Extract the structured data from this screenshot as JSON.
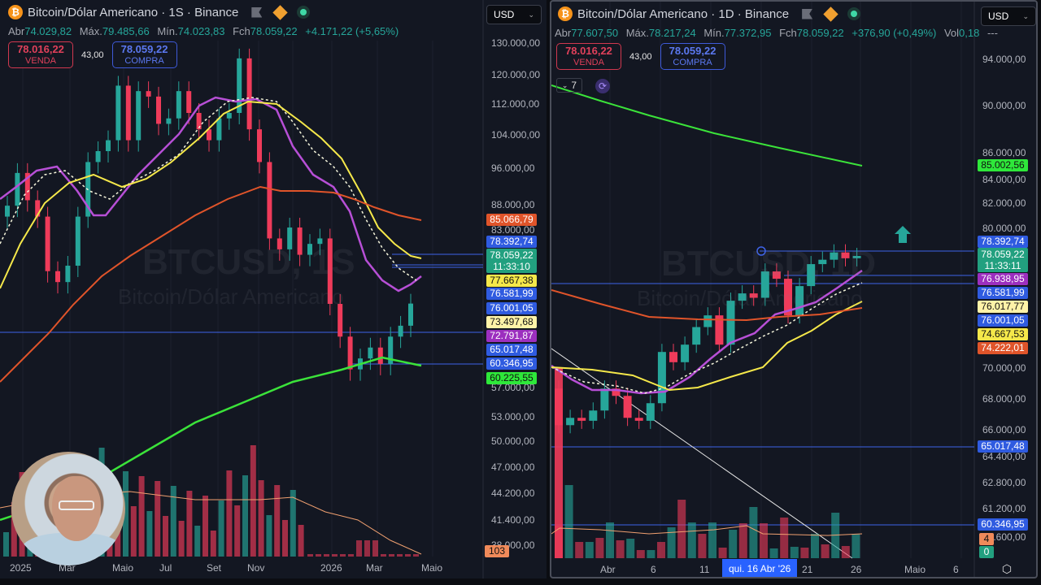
{
  "left": {
    "header": {
      "symbol_title": "Bitcoin/Dólar Americano · 1S · Binance",
      "coin_glyph": "₿"
    },
    "ohlc": {
      "open_label": "Abr",
      "open": "74.029,82",
      "high_label": "Máx.",
      "high": "79.485,66",
      "low_label": "Mín.",
      "low": "74.023,83",
      "close_label": "Fch",
      "close": "78.059,22",
      "change": "+4.171,22 (+5,65%)"
    },
    "trade": {
      "sell_price": "78.016,22",
      "sell_label": "VENDA",
      "spread": "43,00",
      "buy_price": "78.059,22",
      "buy_label": "COMPRA"
    },
    "currency": "USD",
    "watermark": {
      "ticker": "BTCUSD, 1S",
      "name": "Bitcoin/Dólar Americano"
    },
    "price_axis": [
      "130.000,00",
      "120.000,00",
      "112.000,00",
      "104.000,00",
      "96.000,00",
      "88.000,00",
      "83.000,00",
      "57.000,00",
      "53.000,00",
      "50.000,00",
      "47.000,00",
      "44.200,00",
      "41.400,00",
      "38.000,00"
    ],
    "price_tags": [
      {
        "value": "85.066,79",
        "bg": "#e0542a",
        "fg": "#ffffff"
      },
      {
        "value": "78.392,74",
        "bg": "#2f5be0",
        "fg": "#ffffff"
      },
      {
        "value": "78.059,22",
        "sub": "11:33:10",
        "bg": "#22a07f",
        "fg": "#ffffff"
      },
      {
        "value": "77.667,38",
        "bg": "#f5e84a",
        "fg": "#111111"
      },
      {
        "value": "76.581,99",
        "bg": "#2f5be0",
        "fg": "#ffffff"
      },
      {
        "value": "76.001,05",
        "bg": "#2f5be0",
        "fg": "#ffffff"
      },
      {
        "value": "73.497,68",
        "bg": "#fff3a8",
        "fg": "#111111"
      },
      {
        "value": "72.791,87",
        "bg": "#9c2fbf",
        "fg": "#ffffff"
      },
      {
        "value": "65.017,48",
        "bg": "#2f5be0",
        "fg": "#ffffff"
      },
      {
        "value": "60.346,95",
        "bg": "#2f5be0",
        "fg": "#ffffff"
      },
      {
        "value": "60.225,55",
        "bg": "#2ee83a",
        "fg": "#111111"
      }
    ],
    "volume_tag": "103",
    "time_axis": [
      "2025",
      "Mar",
      "Maio",
      "Jul",
      "Set",
      "Nov",
      "2026",
      "Mar",
      "Maio"
    ]
  },
  "right": {
    "header": {
      "symbol_title": "Bitcoin/Dólar Americano · 1D · Binance",
      "coin_glyph": "₿"
    },
    "ohlc": {
      "open_label": "Abr",
      "open": "77.607,50",
      "high_label": "Máx.",
      "high": "78.217,24",
      "low_label": "Mín.",
      "low": "77.372,95",
      "close_label": "Fch",
      "close": "78.059,22",
      "change": "+376,90 (+0,49%)",
      "vol_label": "Vol",
      "vol": "0,18",
      "more": "---"
    },
    "trade": {
      "sell_price": "78.016,22",
      "sell_label": "VENDA",
      "spread": "43,00",
      "buy_price": "78.059,22",
      "buy_label": "COMPRA"
    },
    "indicator_count": "7",
    "currency": "USD",
    "watermark": {
      "ticker": "BTCUSD, 1D",
      "name": "Bitcoin/Dólar Americano"
    },
    "price_axis": [
      "94.000,00",
      "90.000,00",
      "86.000,00",
      "84.000,00",
      "82.000,00",
      "80.000,00",
      "70.000,00",
      "68.000,00",
      "66.000,00",
      "64.400,00",
      "62.800,00",
      "61.200,00",
      "59.600,00"
    ],
    "price_tags": [
      {
        "value": "85.002,56",
        "bg": "#2ee83a",
        "fg": "#111111"
      },
      {
        "value": "78.392,74",
        "bg": "#2f5be0",
        "fg": "#ffffff"
      },
      {
        "value": "78.059,22",
        "sub": "11:33:11",
        "bg": "#22a07f",
        "fg": "#ffffff"
      },
      {
        "value": "76.938,95",
        "bg": "#9c2fbf",
        "fg": "#ffffff"
      },
      {
        "value": "76.581,99",
        "bg": "#2f5be0",
        "fg": "#ffffff"
      },
      {
        "value": "76.017,77",
        "bg": "#fff3a8",
        "fg": "#111111"
      },
      {
        "value": "76.001,05",
        "bg": "#2f5be0",
        "fg": "#ffffff"
      },
      {
        "value": "74.667,53",
        "bg": "#f5e84a",
        "fg": "#111111"
      },
      {
        "value": "74.222,01",
        "bg": "#e0542a",
        "fg": "#ffffff"
      },
      {
        "value": "65.017,48",
        "bg": "#2f5be0",
        "fg": "#ffffff"
      },
      {
        "value": "60.346,95",
        "bg": "#2f5be0",
        "fg": "#ffffff"
      }
    ],
    "volume_tags": [
      {
        "value": "4",
        "bg": "#f08a5a"
      },
      {
        "value": "0",
        "bg": "#22a07f"
      }
    ],
    "time_axis": [
      "6",
      "Abr",
      "6",
      "11",
      "21",
      "26",
      "Maio",
      "6"
    ],
    "crosshair_time": "qui. 16 Abr '26"
  },
  "colors": {
    "up": "#26a69a",
    "down": "#ef3b5a",
    "ma_purple": "#b74fd6",
    "ma_white_dashed": "#f5f5dc",
    "ma_yellow": "#f5e84a",
    "ma_orange": "#e0542a",
    "ma_green": "#3be33a",
    "hline": "#3e63e8",
    "bg": "#131722"
  },
  "chart_data": [
    {
      "type": "candlestick",
      "title": "Bitcoin/Dólar Americano · 1S · Binance",
      "timeframe": "1S (weekly)",
      "x": [
        "2025",
        "Mar",
        "Maio",
        "Jul",
        "Set",
        "Nov",
        "2026",
        "Mar",
        "Maio"
      ],
      "ylabel": "USD",
      "ylim": [
        38000,
        132000
      ],
      "last": {
        "open": 74029.82,
        "high": 79485.66,
        "low": 74023.83,
        "close": 78059.22,
        "change": 4171.22,
        "change_pct": 5.65
      },
      "moving_averages": [
        {
          "name": "MA purple",
          "last": 72791.87
        },
        {
          "name": "MA dashed white",
          "last": 73497.68
        },
        {
          "name": "MA yellow",
          "last": 77667.38
        },
        {
          "name": "MA orange",
          "last": 85066.79
        },
        {
          "name": "MA green",
          "last": 60225.55
        }
      ],
      "horizontal_lines": [
        78392.74,
        76581.99,
        76001.05,
        65017.48,
        60346.95
      ],
      "approx_weekly_closes": [
        96000,
        102000,
        97000,
        94000,
        84000,
        82000,
        85000,
        94000,
        104000,
        106000,
        108000,
        118000,
        108000,
        117000,
        116000,
        111000,
        112000,
        117000,
        113000,
        110000,
        108000,
        112000,
        113000,
        123000,
        110000,
        104000,
        90000,
        88000,
        92000,
        87000,
        89000,
        90000,
        78000,
        72000,
        66000,
        68000,
        70000,
        67000,
        72000,
        74000,
        78059
      ],
      "volume_last": 103
    },
    {
      "type": "candlestick",
      "title": "Bitcoin/Dólar Americano · 1D · Binance",
      "timeframe": "1D (daily)",
      "x": [
        "6",
        "Abr",
        "6",
        "11",
        "16",
        "21",
        "26",
        "Maio",
        "6"
      ],
      "ylabel": "USD",
      "ylim": [
        59000,
        96000
      ],
      "last": {
        "open": 77607.5,
        "high": 78217.24,
        "low": 77372.95,
        "close": 78059.22,
        "change": 376.9,
        "change_pct": 0.49,
        "volume": 0.18
      },
      "moving_averages": [
        {
          "name": "MA purple",
          "last": 76938.95
        },
        {
          "name": "MA dashed white",
          "last": 76017.77
        },
        {
          "name": "MA yellow",
          "last": 74667.53
        },
        {
          "name": "MA orange",
          "last": 74222.01
        },
        {
          "name": "MA green",
          "last": 85002.56
        }
      ],
      "horizontal_lines": [
        78392.74,
        76581.99,
        76001.05,
        65017.48,
        60346.95
      ],
      "approx_daily_closes": [
        66500,
        67000,
        66800,
        67500,
        69000,
        68500,
        67000,
        66800,
        68000,
        71500,
        70800,
        72000,
        73200,
        74000,
        72000,
        75000,
        75500,
        75200,
        77000,
        76500,
        74000,
        76000,
        77500,
        77800,
        78300,
        77900,
        78059
      ],
      "volume_tags": [
        4,
        0
      ],
      "crosshair": "qui. 16 Abr '26"
    }
  ]
}
